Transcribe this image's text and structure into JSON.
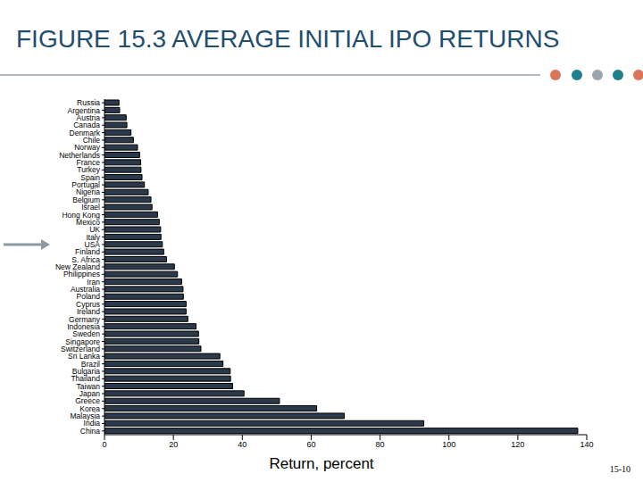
{
  "chart_data": {
    "type": "bar",
    "title": "FIGURE 15.3 AVERAGE INITIAL IPO RETURNS",
    "x_label": "Return, percent",
    "annotations": [
      "15-10"
    ],
    "orientation": "horizontal",
    "categories": [
      "Russia",
      "Argentina",
      "Austria",
      "Canada",
      "Denmark",
      "Chile",
      "Norway",
      "Netherlands",
      "France",
      "Turkey",
      "Spain",
      "Portugal",
      "Nigeria",
      "Belgium",
      "Israel",
      "Hong Kong",
      "Mexico",
      "UK",
      "Italy",
      "USA",
      "Finland",
      "S. Africa",
      "New Zealand",
      "Philippines",
      "Iran",
      "Australia",
      "Poland",
      "Cyprus",
      "Ireland",
      "Germany",
      "Indonesia",
      "Sweden",
      "Singapore",
      "Switzerland",
      "Sri Lanka",
      "Brazil",
      "Bulgaria",
      "Thailand",
      "Taiwan",
      "Japan",
      "Greece",
      "Korea",
      "Malaysia",
      "India",
      "China"
    ],
    "values": [
      4.2,
      4.4,
      6.3,
      6.5,
      7.7,
      8.4,
      9.6,
      10.2,
      10.5,
      10.6,
      10.9,
      11.6,
      12.7,
      13.5,
      13.8,
      15.4,
      15.9,
      16.3,
      16.4,
      16.8,
      17.2,
      18.0,
      20.3,
      21.2,
      22.4,
      22.8,
      22.9,
      23.7,
      23.7,
      24.2,
      26.6,
      27.3,
      27.4,
      28.0,
      33.5,
      34.4,
      36.5,
      36.6,
      37.2,
      40.5,
      50.8,
      61.6,
      69.6,
      92.7,
      137.4
    ],
    "color": "#2b3a4a",
    "xlim": [
      0,
      140
    ],
    "xticks": [
      0,
      20,
      40,
      60,
      80,
      100,
      120,
      140
    ],
    "grid": false
  }
}
